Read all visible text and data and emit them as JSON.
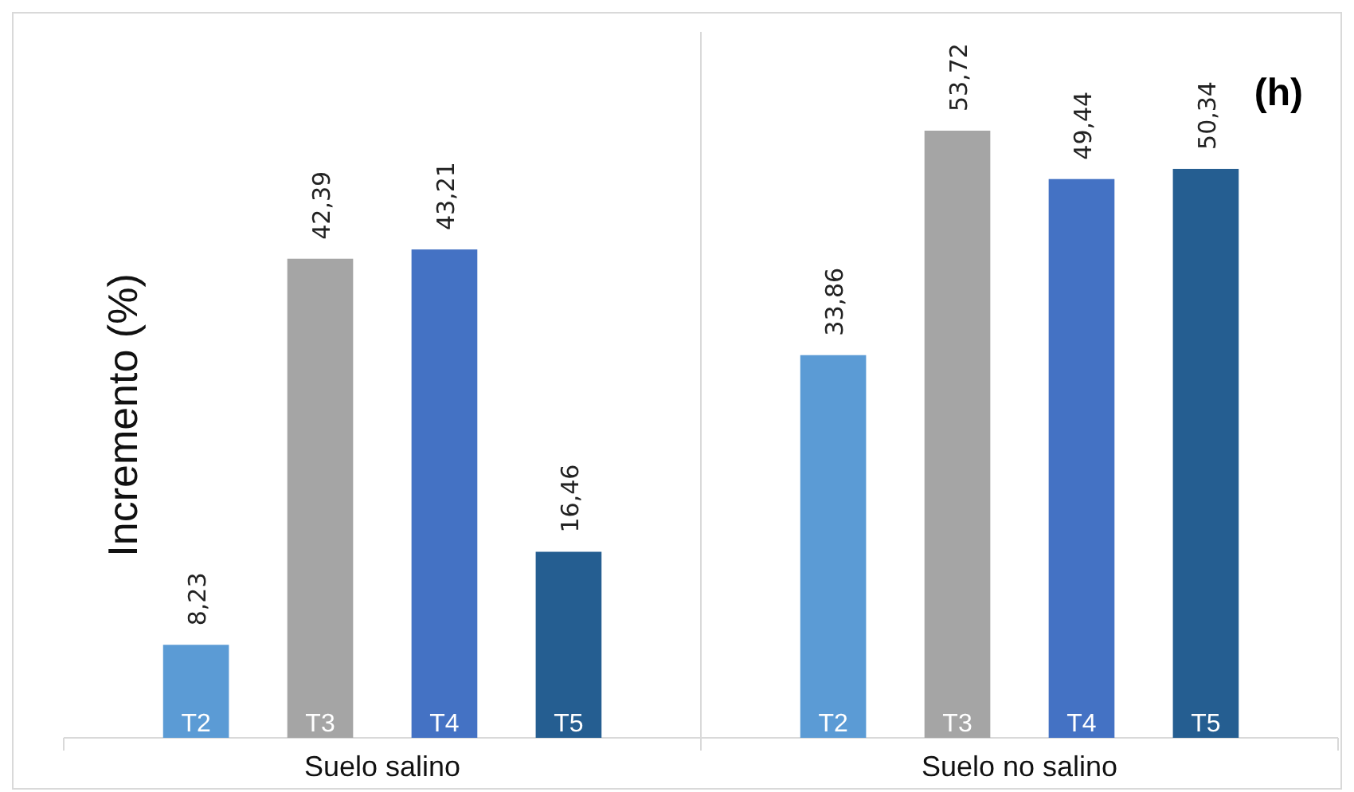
{
  "chart_data": {
    "type": "bar",
    "ylabel": "Incremento (%)",
    "annotations": [
      "(h)"
    ],
    "categories": [
      "Suelo salino",
      "Suelo no salino"
    ],
    "series": [
      {
        "name": "T2",
        "color": "#5b9bd5",
        "values": [
          8.23,
          33.86
        ],
        "value_labels": [
          "8,23",
          "33,86"
        ]
      },
      {
        "name": "T3",
        "color": "#a5a5a5",
        "values": [
          42.39,
          53.72
        ],
        "value_labels": [
          "42,39",
          "53,72"
        ]
      },
      {
        "name": "T4",
        "color": "#4472c4",
        "values": [
          43.21,
          49.44
        ],
        "value_labels": [
          "43,21",
          "49,44"
        ]
      },
      {
        "name": "T5",
        "color": "#255e91",
        "values": [
          16.46,
          50.34
        ],
        "value_labels": [
          "16,46",
          "50,34"
        ]
      }
    ],
    "tick_labels": "x",
    "legend": false
  }
}
